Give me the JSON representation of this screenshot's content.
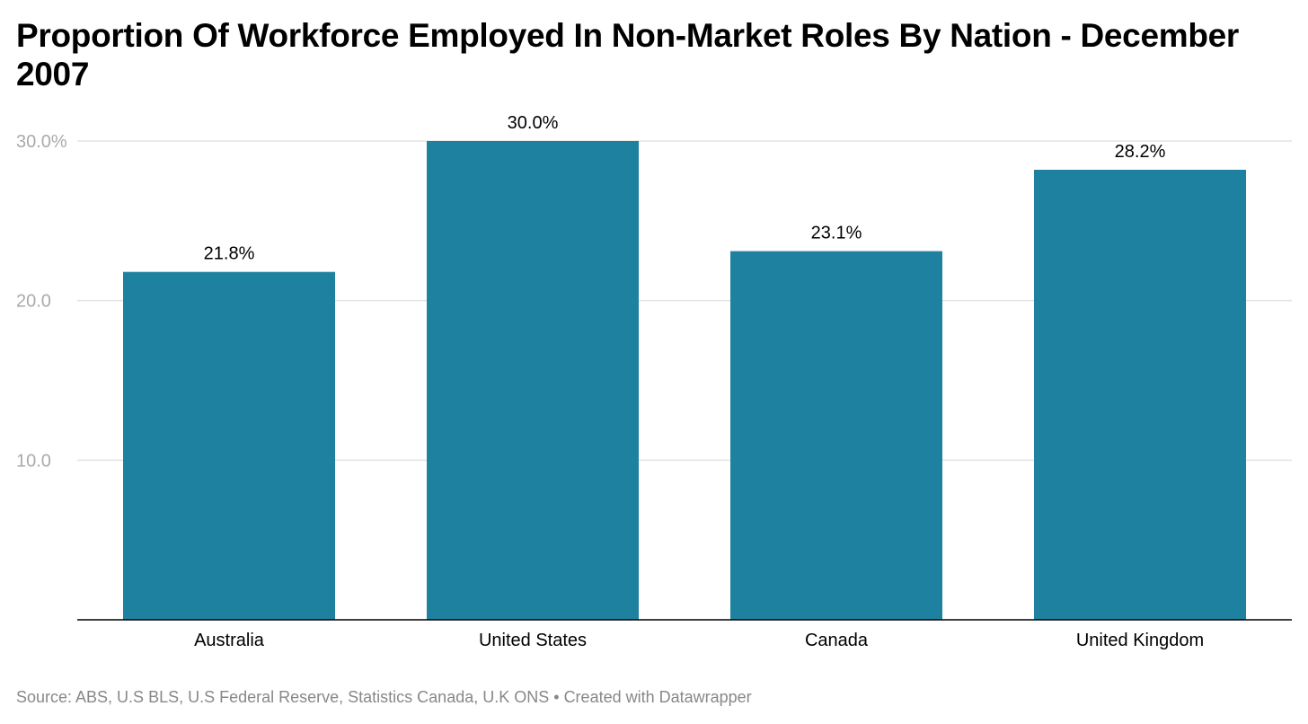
{
  "chart_data": {
    "type": "bar",
    "title": "Proportion Of Workforce Employed In Non-Market Roles By Nation - December 2007",
    "categories": [
      "Australia",
      "United States",
      "Canada",
      "United Kingdom"
    ],
    "values": [
      21.8,
      30.0,
      23.1,
      28.2
    ],
    "value_labels": [
      "21.8%",
      "30.0%",
      "23.1%",
      "28.2%"
    ],
    "yticks": [
      10,
      20,
      30
    ],
    "ytick_labels": [
      "10.0",
      "20.0",
      "30.0%"
    ],
    "ylim": [
      0,
      30
    ],
    "xlabel": "",
    "ylabel": "",
    "grid": true,
    "bar_color": "#1f81a0"
  },
  "footer": {
    "source": "Source: ABS, U.S BLS, U.S Federal Reserve, Statistics Canada, U.K ONS",
    "separator": " • ",
    "credit": "Created with Datawrapper"
  }
}
